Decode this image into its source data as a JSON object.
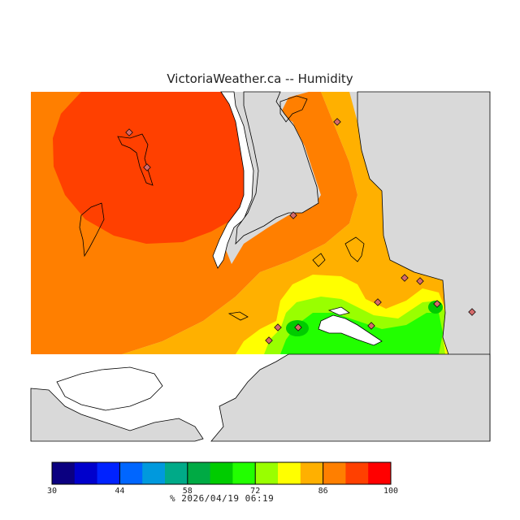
{
  "title": "VictoriaWeather.ca -- Humidity",
  "footer": {
    "unit": "%",
    "timestamp": "2026/04/19 06:19"
  },
  "colors": {
    "land": "#d9d9d9",
    "water": "#ffffff",
    "station_marker": "#d46a6a"
  },
  "colorbar": {
    "min": 30,
    "max": 100,
    "tick_labels": [
      "30",
      "44",
      "58",
      "72",
      "86",
      "100"
    ],
    "colors": [
      "#0b0080",
      "#0000cc",
      "#0022ff",
      "#0066ff",
      "#0099dd",
      "#00aa88",
      "#00aa44",
      "#00cc00",
      "#22ff00",
      "#99ff00",
      "#ffff00",
      "#ffb000",
      "#ff7f00",
      "#ff4000",
      "#ff0000"
    ]
  },
  "humidity_zones": [
    {
      "name": "zone-70",
      "color": "#22ff00"
    },
    {
      "name": "zone-75",
      "color": "#99ff00"
    },
    {
      "name": "zone-80",
      "color": "#ffff00"
    },
    {
      "name": "zone-85",
      "color": "#ffb000"
    },
    {
      "name": "zone-90",
      "color": "#ff7f00"
    },
    {
      "name": "zone-95",
      "color": "#ff4000"
    },
    {
      "name": "zone-60",
      "color": "#00cc00"
    }
  ]
}
